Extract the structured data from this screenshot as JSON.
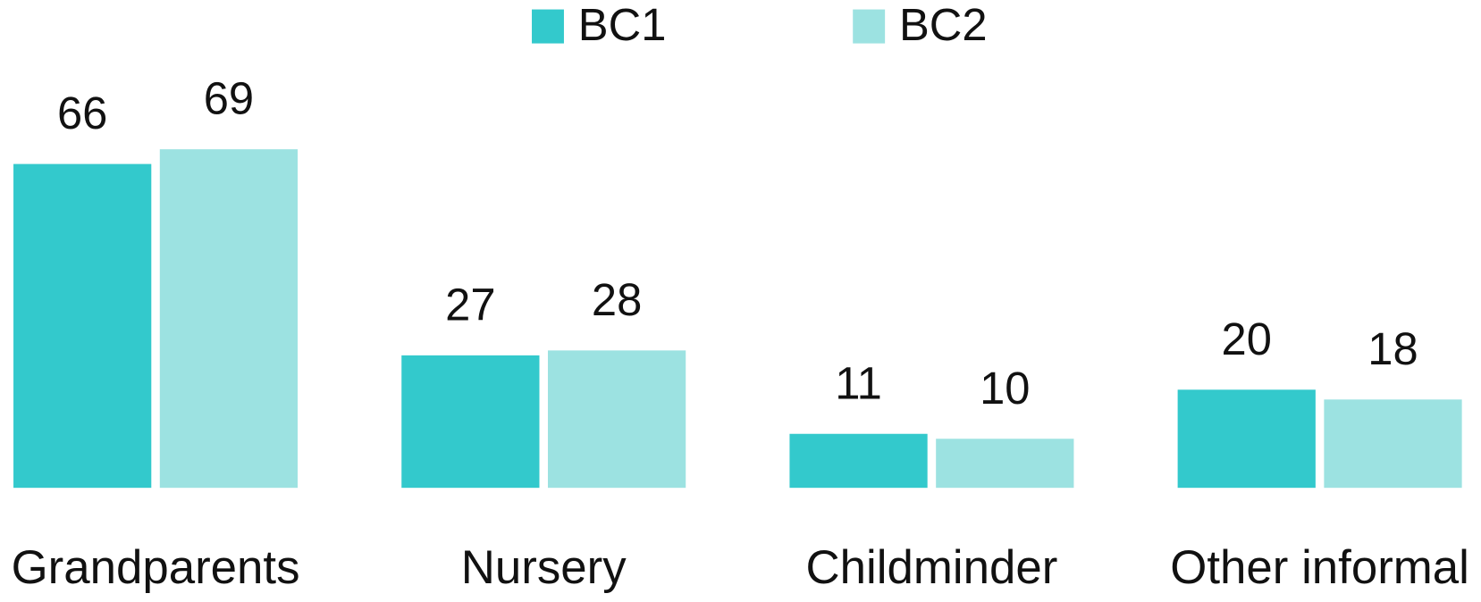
{
  "chart_data": {
    "type": "bar",
    "categories": [
      "Grandparents",
      "Nursery",
      "Childminder",
      "Other informal"
    ],
    "series": [
      {
        "name": "BC1",
        "color": "#33c9cc",
        "values": [
          66,
          27,
          11,
          20
        ]
      },
      {
        "name": "BC2",
        "color": "#9ce2e1",
        "values": [
          69,
          28,
          10,
          18
        ]
      }
    ],
    "legend": "top"
  }
}
